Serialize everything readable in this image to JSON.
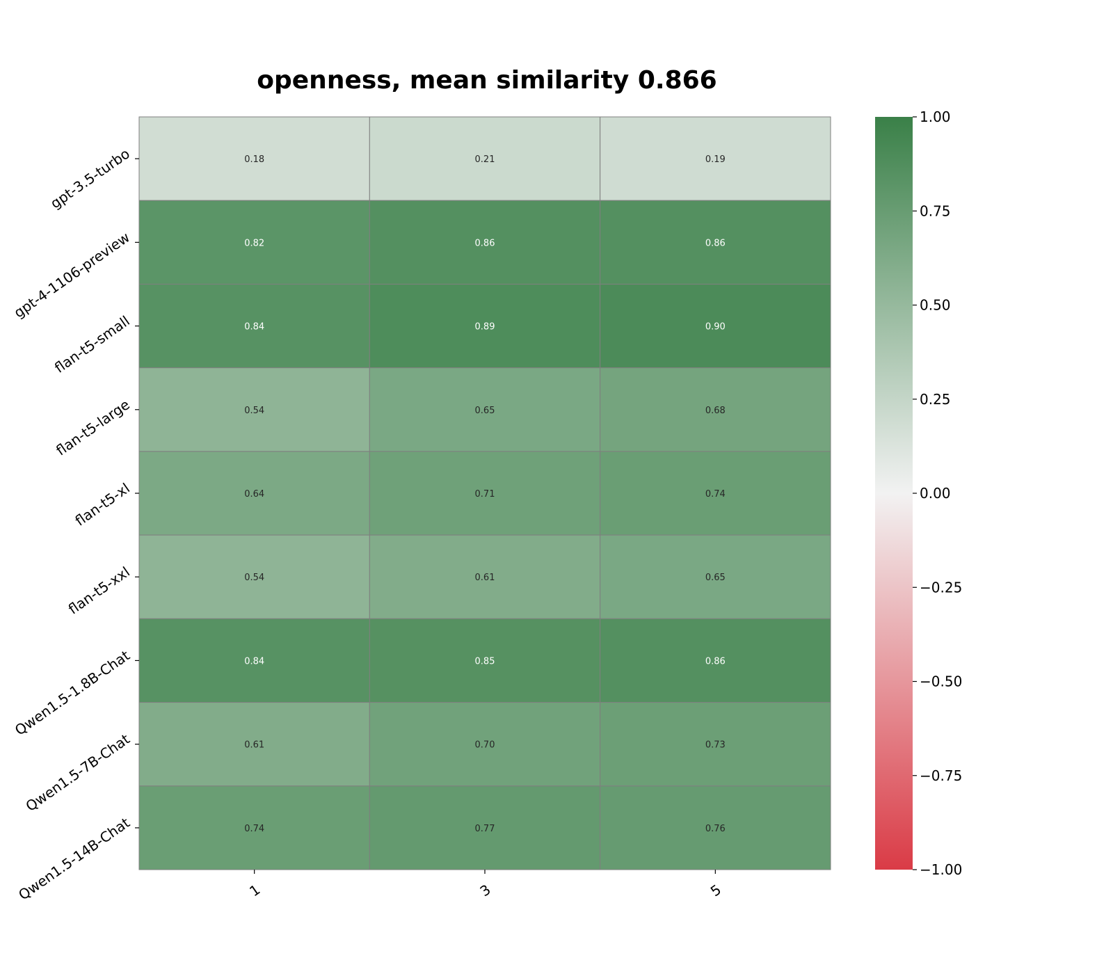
{
  "chart_data": {
    "type": "heatmap",
    "title": "openness, mean similarity 0.866",
    "xlabel": "",
    "ylabel": "",
    "columns": [
      "1",
      "3",
      "5"
    ],
    "rows": [
      "gpt-3.5-turbo",
      "gpt-4-1106-preview",
      "flan-t5-small",
      "flan-t5-large",
      "flan-t5-xl",
      "flan-t5-xxl",
      "Qwen1.5-1.8B-Chat",
      "Qwen1.5-7B-Chat",
      "Qwen1.5-14B-Chat"
    ],
    "values": [
      [
        0.18,
        0.21,
        0.19
      ],
      [
        0.82,
        0.86,
        0.86
      ],
      [
        0.84,
        0.89,
        0.9
      ],
      [
        0.54,
        0.65,
        0.68
      ],
      [
        0.64,
        0.71,
        0.74
      ],
      [
        0.54,
        0.61,
        0.65
      ],
      [
        0.84,
        0.85,
        0.86
      ],
      [
        0.61,
        0.7,
        0.73
      ],
      [
        0.74,
        0.77,
        0.76
      ]
    ],
    "value_range": [
      -1.0,
      1.0
    ],
    "colorbar_ticks": [
      "1.00",
      "0.75",
      "0.50",
      "0.25",
      "0.00",
      "−0.25",
      "−0.50",
      "−0.75",
      "−1.00"
    ],
    "colormap": {
      "low": "#da3b46",
      "mid": "#f2f2f2",
      "high": "#3a8048"
    },
    "cell_border_color": "#7f7f7f",
    "annotation_colors": {
      "dark": "#262626",
      "light": "#ffffff"
    },
    "grid": false
  }
}
